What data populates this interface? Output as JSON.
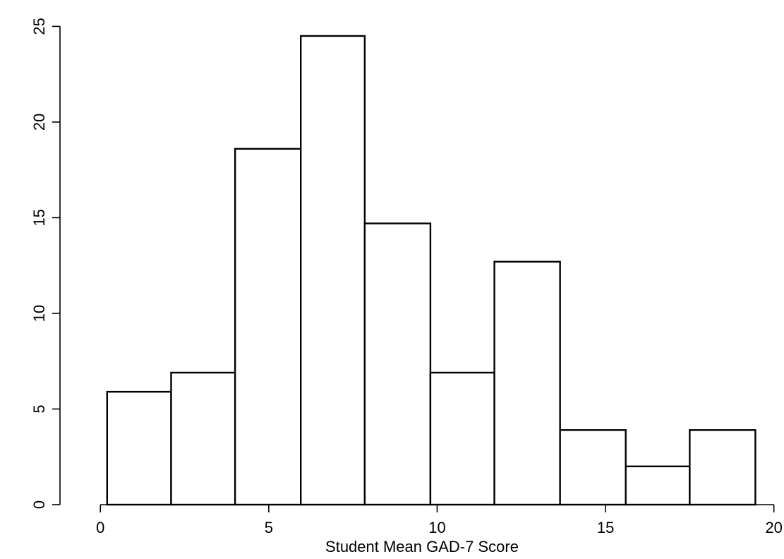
{
  "chart_data": {
    "type": "bar",
    "subtype": "histogram",
    "title": "",
    "xlabel": "Student Mean GAD-7 Score",
    "ylabel": "",
    "xlim": [
      -1.2,
      20.3
    ],
    "ylim": [
      0,
      25.9
    ],
    "xticks": [
      0,
      5,
      10,
      15,
      20
    ],
    "yticks": [
      0,
      5,
      10,
      15,
      20,
      25
    ],
    "xtick_labels": [
      "0",
      "5",
      "10",
      "15",
      "20"
    ],
    "ytick_labels": [
      "0",
      "5",
      "10",
      "15",
      "20",
      "25"
    ],
    "bins": [
      {
        "x0": 0.2,
        "x1": 2.1,
        "value": 5.9
      },
      {
        "x0": 2.1,
        "x1": 4.0,
        "value": 6.9
      },
      {
        "x0": 4.0,
        "x1": 5.95,
        "value": 18.6
      },
      {
        "x0": 5.95,
        "x1": 7.85,
        "value": 24.5
      },
      {
        "x0": 7.85,
        "x1": 9.8,
        "value": 14.7
      },
      {
        "x0": 9.8,
        "x1": 11.7,
        "value": 6.9
      },
      {
        "x0": 11.7,
        "x1": 13.65,
        "value": 12.7
      },
      {
        "x0": 13.65,
        "x1": 15.6,
        "value": 3.9
      },
      {
        "x0": 15.6,
        "x1": 17.5,
        "value": 2.0
      },
      {
        "x0": 17.5,
        "x1": 19.45,
        "value": 3.9
      }
    ],
    "grid": false,
    "legend": "none",
    "bar_fill": "#ffffff",
    "bar_stroke": "#000000"
  }
}
